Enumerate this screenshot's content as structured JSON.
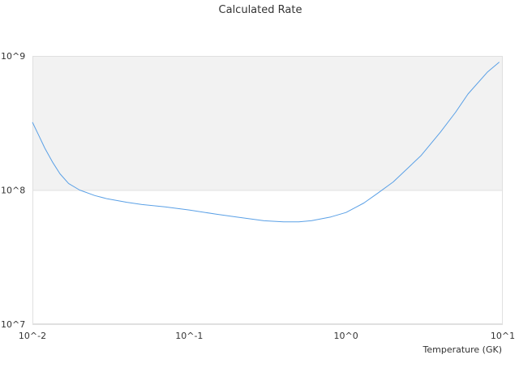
{
  "chart_data": {
    "type": "line",
    "title": "Calculated Rate",
    "xlabel": "Temperature (GK)",
    "ylabel": "",
    "x_scale": "log",
    "y_scale": "log",
    "xlim": [
      0.01,
      10
    ],
    "ylim": [
      10000000,
      1000000000
    ],
    "x_ticks": [
      {
        "value": 0.01,
        "label": "10^-2"
      },
      {
        "value": 0.1,
        "label": "10^-1"
      },
      {
        "value": 1,
        "label": "10^0"
      },
      {
        "value": 10,
        "label": "10^1"
      }
    ],
    "y_ticks": [
      {
        "value": 10000000,
        "label": "10^7"
      },
      {
        "value": 100000000,
        "label": "10^8"
      },
      {
        "value": 1000000000,
        "label": "10^9"
      }
    ],
    "shaded_band": {
      "from": 100000000,
      "to": 1000000000,
      "color": "#f2f2f2"
    },
    "grid": false,
    "legend": "none",
    "colors": {
      "line": "#5aa0e6",
      "plot_border": "#e0e0e0",
      "text": "#333333"
    },
    "series": [
      {
        "x": [
          0.01,
          0.0109,
          0.012,
          0.0135,
          0.015,
          0.017,
          0.02,
          0.025,
          0.03,
          0.04,
          0.05,
          0.07,
          0.1,
          0.15,
          0.2,
          0.3,
          0.4,
          0.5,
          0.6,
          0.8,
          1.0,
          1.3,
          1.6,
          2.0,
          3.0,
          4.0,
          5.0,
          6.0,
          8.0,
          9.5
        ],
        "y": [
          320000000,
          260000000,
          205000000,
          160000000,
          132000000,
          112000000,
          100000000,
          91000000,
          86000000,
          81000000,
          78000000,
          75000000,
          71000000,
          66000000,
          63000000,
          59000000,
          58000000,
          58000000,
          59000000,
          63000000,
          68000000,
          80000000,
          95000000,
          115000000,
          180000000,
          270000000,
          380000000,
          520000000,
          760000000,
          900000000
        ]
      }
    ]
  }
}
